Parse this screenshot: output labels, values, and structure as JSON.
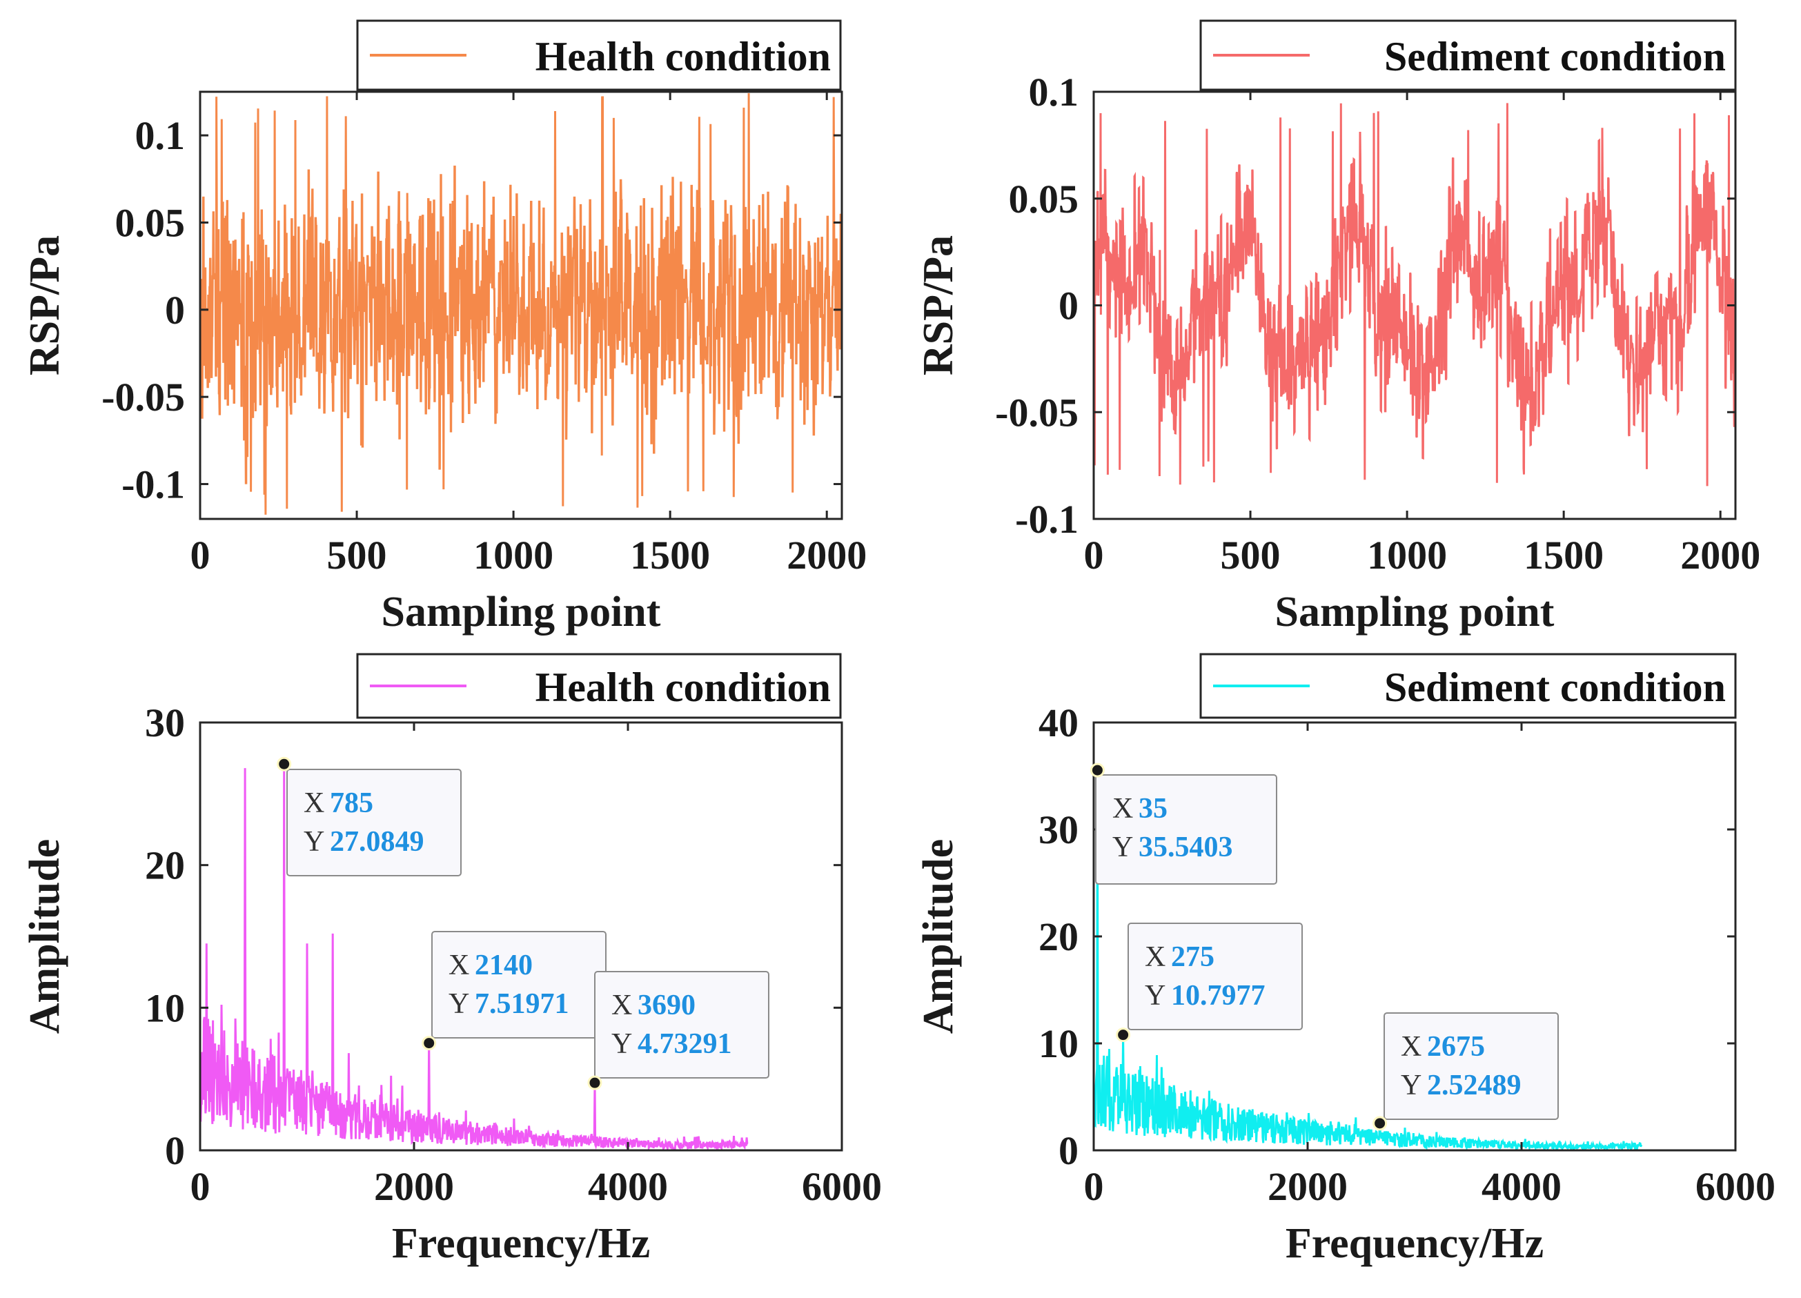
{
  "chart_data": [
    {
      "id": "health-time",
      "type": "line",
      "legend": "Health condition",
      "color": "#f5894a",
      "xlabel": "Sampling point",
      "ylabel": "RSP/Pa",
      "xlim": [
        0,
        2048
      ],
      "ylim": [
        -0.12,
        0.125
      ],
      "xticks": [
        0,
        500,
        1000,
        1500,
        2000
      ],
      "xtick_labels": [
        "0",
        "500",
        "1000",
        "1500",
        "2000"
      ],
      "yticks": [
        -0.1,
        -0.05,
        0,
        0.05,
        0.1
      ],
      "ytick_labels": [
        "-0.1",
        "-0.05",
        "0",
        "0.05",
        "0.1"
      ],
      "signal": {
        "kind": "noise",
        "points": 2048,
        "seed": 11,
        "amplitude": 0.05,
        "max": 0.125,
        "min": -0.12,
        "base_freq": 0,
        "base_amp": 0
      },
      "datatips": []
    },
    {
      "id": "sediment-time",
      "type": "line",
      "legend": "Sediment condition",
      "color": "#f56a6a",
      "xlabel": "Sampling point",
      "ylabel": "RSP/Pa",
      "xlim": [
        0,
        2048
      ],
      "ylim": [
        -0.1,
        0.1
      ],
      "xticks": [
        0,
        500,
        1000,
        1500,
        2000
      ],
      "xtick_labels": [
        "0",
        "500",
        "1000",
        "1500",
        "2000"
      ],
      "yticks": [
        -0.1,
        -0.05,
        0,
        0.05,
        0.1
      ],
      "ytick_labels": [
        "-0.1",
        "-0.05",
        "0",
        "0.05",
        "0.1"
      ],
      "signal": {
        "kind": "noise",
        "points": 2048,
        "seed": 23,
        "amplitude": 0.025,
        "max": 0.095,
        "min": -0.085,
        "base_freq": 5.5,
        "base_amp": 0.028
      },
      "datatips": []
    },
    {
      "id": "health-spectrum",
      "type": "line",
      "legend": "Health condition",
      "color": "#f05af5",
      "xlabel": "Frequency/Hz",
      "ylabel": "Amplitude",
      "xlim": [
        0,
        6000
      ],
      "ylim": [
        0,
        30
      ],
      "xticks": [
        0,
        2000,
        4000,
        6000
      ],
      "xtick_labels": [
        "0",
        "2000",
        "4000",
        "6000"
      ],
      "yticks": [
        0,
        10,
        20,
        30
      ],
      "ytick_labels": [
        "0",
        "10",
        "20",
        "30"
      ],
      "signal": {
        "kind": "spectrum",
        "points": 1024,
        "fmax": 5120,
        "seed": 37,
        "peaks": [
          [
            420,
            26.8
          ],
          [
            785,
            27.0849
          ],
          [
            1240,
            15.2
          ],
          [
            60,
            14.5
          ],
          [
            1000,
            14.5
          ],
          [
            2140,
            7.51971
          ],
          [
            3690,
            4.73291
          ]
        ]
      },
      "datatips": [
        {
          "x": 785,
          "y": 27.0849,
          "x_label": "X",
          "y_label": "Y",
          "x_text": "785",
          "y_text": "27.0849"
        },
        {
          "x": 2140,
          "y": 7.51971,
          "x_label": "X",
          "y_label": "Y",
          "x_text": "2140",
          "y_text": "7.51971"
        },
        {
          "x": 3690,
          "y": 4.73291,
          "x_label": "X",
          "y_label": "Y",
          "x_text": "3690",
          "y_text": "4.73291"
        }
      ]
    },
    {
      "id": "sediment-spectrum",
      "type": "line",
      "legend": "Sediment condition",
      "color": "#10eef0",
      "xlabel": "Frequency/Hz",
      "ylabel": "Amplitude",
      "xlim": [
        0,
        6000
      ],
      "ylim": [
        0,
        40
      ],
      "xticks": [
        0,
        2000,
        4000,
        6000
      ],
      "xtick_labels": [
        "0",
        "2000",
        "4000",
        "6000"
      ],
      "yticks": [
        0,
        10,
        20,
        30,
        40
      ],
      "ytick_labels": [
        "0",
        "10",
        "20",
        "30",
        "40"
      ],
      "signal": {
        "kind": "spectrum",
        "points": 1024,
        "fmax": 5120,
        "seed": 53,
        "peaks": [
          [
            35,
            35.5403
          ],
          [
            275,
            10.7977
          ],
          [
            590,
            8.9
          ],
          [
            2675,
            2.52489
          ]
        ]
      },
      "datatips": [
        {
          "x": 35,
          "y": 35.5403,
          "x_label": "X",
          "y_label": "Y",
          "x_text": "35",
          "y_text": "35.5403"
        },
        {
          "x": 275,
          "y": 10.7977,
          "x_label": "X",
          "y_label": "Y",
          "x_text": "275",
          "y_text": "10.7977"
        },
        {
          "x": 2675,
          "y": 2.52489,
          "x_label": "X",
          "y_label": "Y",
          "x_text": "2675",
          "y_text": "2.52489"
        }
      ]
    }
  ]
}
